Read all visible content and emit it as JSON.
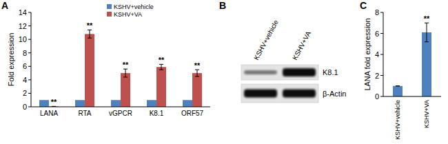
{
  "chart_data": [
    {
      "type": "bar",
      "title": "A",
      "y_label": "Fold expression",
      "categories": [
        "LANA",
        "RTA",
        "vGPCR",
        "K8.1",
        "ORF57"
      ],
      "series": [
        {
          "name": "KSHV+vehicle",
          "color": "#4f81bd",
          "values": [
            1,
            1,
            1,
            1,
            1
          ]
        },
        {
          "name": "KSHV+VA",
          "color": "#c0504d",
          "values": [
            0.05,
            10.8,
            5.0,
            5.9,
            5.0
          ],
          "errors": [
            0.02,
            0.6,
            0.6,
            0.4,
            0.5
          ]
        }
      ],
      "annotations": [
        {
          "category": "LANA",
          "series": "KSHV+VA",
          "text": "**"
        },
        {
          "category": "RTA",
          "series": "KSHV+VA",
          "text": "**"
        },
        {
          "category": "vGPCR",
          "series": "KSHV+VA",
          "text": "**"
        },
        {
          "category": "K8.1",
          "series": "KSHV+VA",
          "text": "**"
        },
        {
          "category": "ORF57",
          "series": "KSHV+VA",
          "text": "**"
        }
      ],
      "ylim": [
        0,
        14
      ],
      "yticks": [
        0,
        2,
        4,
        6,
        8,
        10,
        12,
        14
      ],
      "grid": false,
      "legend": "top"
    },
    {
      "type": "bar",
      "title": "C",
      "y_label": "LANA fold expression",
      "categories": [
        "KSHV+vehicle",
        "KSHV+VA"
      ],
      "values": [
        1,
        6.1
      ],
      "errors": [
        0,
        0.9
      ],
      "color": "#4f81bd",
      "annotations": [
        {
          "category": "KSHV+VA",
          "text": "**"
        }
      ],
      "ylim": [
        0,
        8
      ],
      "yticks": [
        0,
        2,
        4,
        6,
        8
      ],
      "grid": false
    }
  ],
  "blot": {
    "title": "B",
    "lanes": [
      "KSHV+vehicle",
      "KSHV+VA"
    ],
    "bands": [
      "K8.1",
      "β-Actin"
    ]
  }
}
